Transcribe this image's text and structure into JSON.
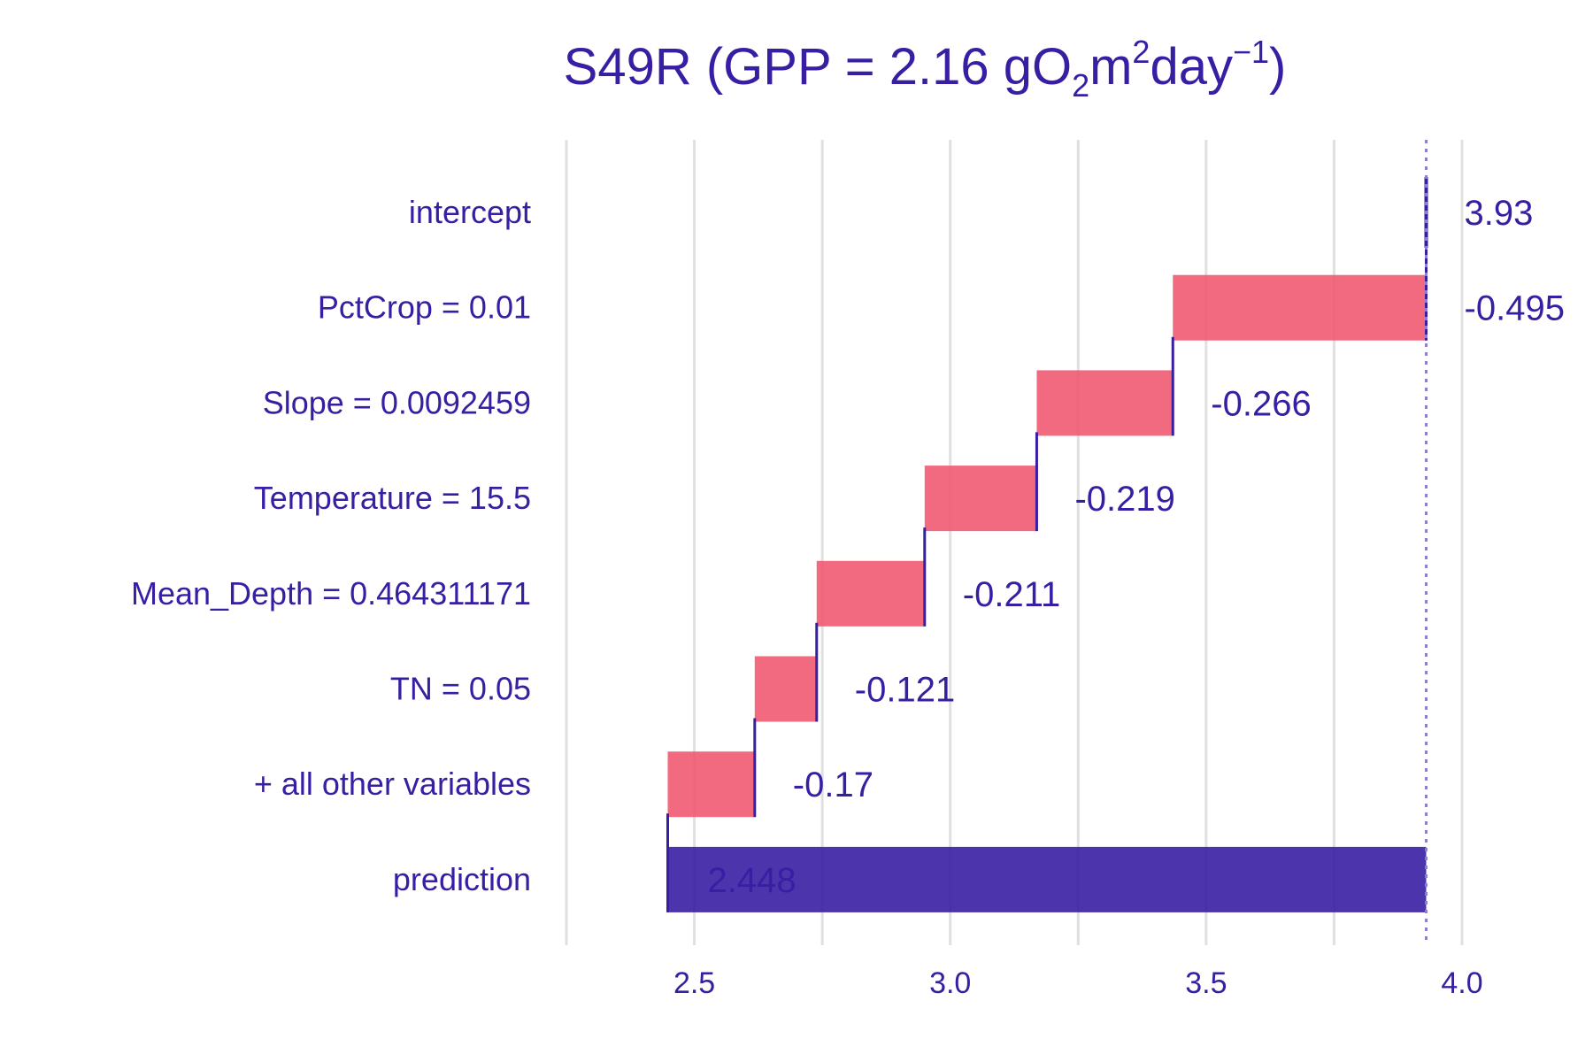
{
  "chart_data": {
    "type": "bar",
    "subtype": "waterfall-break-down",
    "title": {
      "main": "S49R (GPP = 2.16 gO",
      "sub": "2",
      "mid": "m",
      "sup": "2",
      "tail": "day",
      "sup2": "−1",
      "close": ")"
    },
    "xlim": [
      2.25,
      4.0
    ],
    "xticks": [
      {
        "value": 2.5,
        "label": "2.5"
      },
      {
        "value": 3.0,
        "label": "3.0"
      },
      {
        "value": 3.5,
        "label": "3.5"
      },
      {
        "value": 4.0,
        "label": "4.0"
      }
    ],
    "gridlines": [
      2.25,
      2.5,
      2.75,
      3.0,
      3.25,
      3.5,
      3.75,
      4.0
    ],
    "baseline": 3.93,
    "rows": [
      {
        "label": "intercept",
        "start": 3.93,
        "end": 3.93,
        "value_label": "3.93",
        "kind": "intercept"
      },
      {
        "label": "PctCrop = 0.01",
        "start": 3.93,
        "end": 3.435,
        "value_label": "-0.495",
        "kind": "negative"
      },
      {
        "label": "Slope = 0.0092459",
        "start": 3.435,
        "end": 3.169,
        "value_label": "-0.266",
        "kind": "negative"
      },
      {
        "label": "Temperature = 15.5",
        "start": 3.169,
        "end": 2.95,
        "value_label": "-0.219",
        "kind": "negative"
      },
      {
        "label": "Mean_Depth = 0.464311171",
        "start": 2.95,
        "end": 2.739,
        "value_label": "-0.211",
        "kind": "negative"
      },
      {
        "label": "TN = 0.05",
        "start": 2.739,
        "end": 2.618,
        "value_label": "-0.121",
        "kind": "negative"
      },
      {
        "label": "+ all other variables",
        "start": 2.618,
        "end": 2.448,
        "value_label": "-0.17",
        "kind": "negative"
      },
      {
        "label": "prediction",
        "start": 2.448,
        "end": 3.93,
        "value_label": "2.448",
        "kind": "prediction"
      }
    ],
    "colors": {
      "text": "#371ea3",
      "negative": "#f05a71",
      "prediction": "#371ea3",
      "grid": "#e0e0e0",
      "baseline": "#8b7fd0"
    },
    "grid": true,
    "legend": "none"
  }
}
